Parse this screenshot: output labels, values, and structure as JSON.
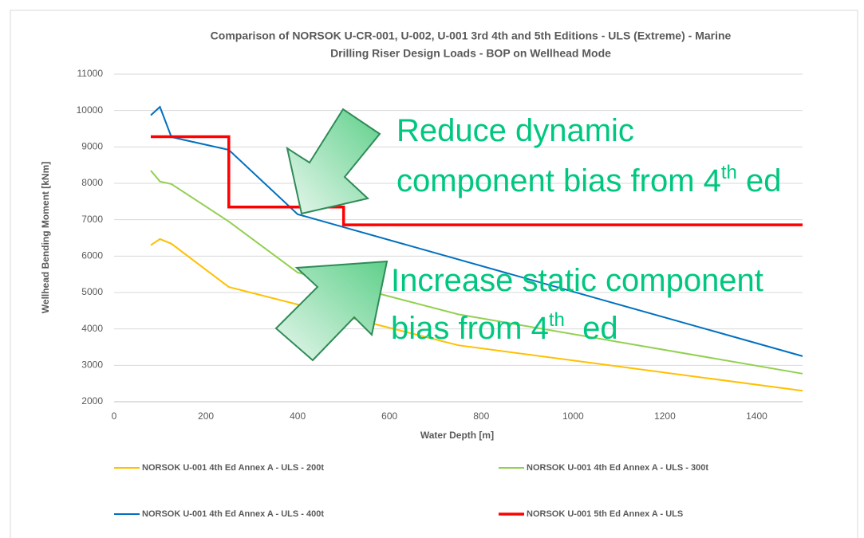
{
  "chart_data": {
    "type": "line",
    "title": [
      "Comparison of NORSOK U-CR-001, U-002, U-001 3rd 4th and 5th Editions - ULS (Extreme) - Marine",
      "Drilling Riser Design Loads - BOP on Wellhead Mode"
    ],
    "x_label": "Water Depth [m]",
    "y_label": "Wellhead Bending Moment [kNm]",
    "xlim": [
      0,
      1500
    ],
    "xticks": [
      0,
      200,
      400,
      600,
      800,
      1000,
      1200,
      1400
    ],
    "ylim": [
      2000,
      11000
    ],
    "yticks": [
      2000,
      3000,
      4000,
      5000,
      6000,
      7000,
      8000,
      9000,
      10000,
      11000
    ],
    "grid": true,
    "series": [
      {
        "name": "NORSOK U-001 4th Ed Annex A - ULS - 200t",
        "color": "#ffc000",
        "x": [
          80,
          100,
          125,
          250,
          750,
          1500
        ],
        "values": [
          6300,
          6470,
          6340,
          5150,
          3550,
          2300
        ]
      },
      {
        "name": "NORSOK U-001 4th Ed Annex A - ULS - 300t",
        "color": "#92d050",
        "x": [
          80,
          100,
          125,
          250,
          400,
          750,
          1500
        ],
        "values": [
          8350,
          8050,
          7980,
          6950,
          5550,
          4400,
          2770
        ]
      },
      {
        "name": "NORSOK U-001 4th Ed Annex A - ULS - 400t",
        "color": "#0070c0",
        "x": [
          80,
          100,
          125,
          250,
          400,
          1500
        ],
        "values": [
          9870,
          10100,
          9270,
          8920,
          7150,
          3250
        ]
      },
      {
        "name": "NORSOK U-001 5th Ed Annex A - ULS",
        "color": "#ff0000",
        "x": [
          80,
          250,
          250,
          500,
          500,
          1500
        ],
        "values": [
          9280,
          9280,
          7350,
          7350,
          6860,
          6860
        ]
      }
    ],
    "annotations": [
      [
        [
          "Reduce dynamic"
        ],
        [
          "component bias from 4",
          "th",
          " ed"
        ]
      ],
      [
        [
          "Increase static component"
        ],
        [
          "bias from 4",
          "th",
          "  ed"
        ]
      ]
    ]
  }
}
